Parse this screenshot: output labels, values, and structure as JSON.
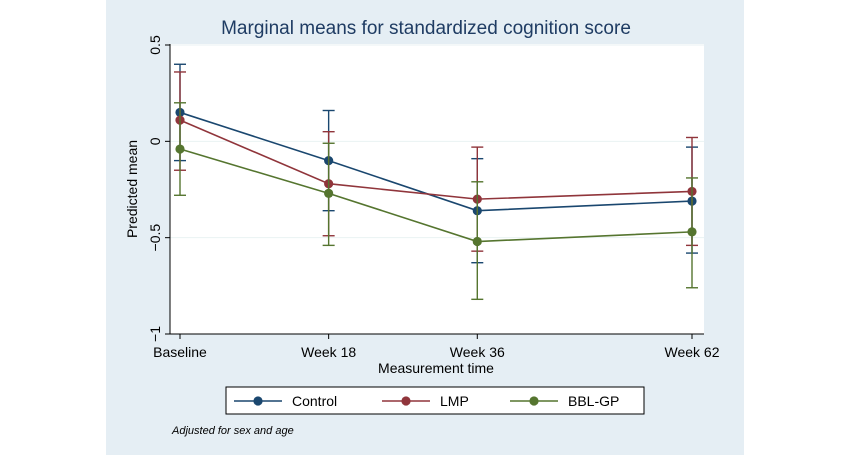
{
  "chart_data": {
    "type": "line",
    "title": "Marginal means for standardized cognition score",
    "xlabel": "Measurement time",
    "ylabel": "Predicted mean",
    "categories": [
      "Baseline",
      "Week 18",
      "Week 36",
      "Week 62"
    ],
    "x_values": [
      0,
      18,
      36,
      62
    ],
    "xlim": [
      0,
      62
    ],
    "ylim": [
      -1,
      0.5
    ],
    "yticks": [
      -1,
      -0.5,
      0,
      0.5
    ],
    "ytick_labels": [
      "−1",
      "−0.5",
      "0",
      "0.5"
    ],
    "grid": true,
    "legend_position": "bottom",
    "note": "Adjusted for sex and age",
    "series": [
      {
        "name": "Control",
        "color": "#1a476f",
        "values": [
          0.15,
          -0.1,
          -0.36,
          -0.31
        ],
        "lower": [
          -0.1,
          -0.36,
          -0.63,
          -0.58
        ],
        "upper": [
          0.4,
          0.16,
          -0.09,
          -0.03
        ]
      },
      {
        "name": "LMP",
        "color": "#90353b",
        "values": [
          0.11,
          -0.22,
          -0.3,
          -0.26
        ],
        "lower": [
          -0.15,
          -0.49,
          -0.57,
          -0.54
        ],
        "upper": [
          0.36,
          0.05,
          -0.03,
          0.02
        ]
      },
      {
        "name": "BBL-GP",
        "color": "#55752f",
        "values": [
          -0.04,
          -0.27,
          -0.52,
          -0.47
        ],
        "lower": [
          -0.28,
          -0.54,
          -0.82,
          -0.76
        ],
        "upper": [
          0.2,
          -0.01,
          -0.21,
          -0.19
        ]
      }
    ]
  }
}
